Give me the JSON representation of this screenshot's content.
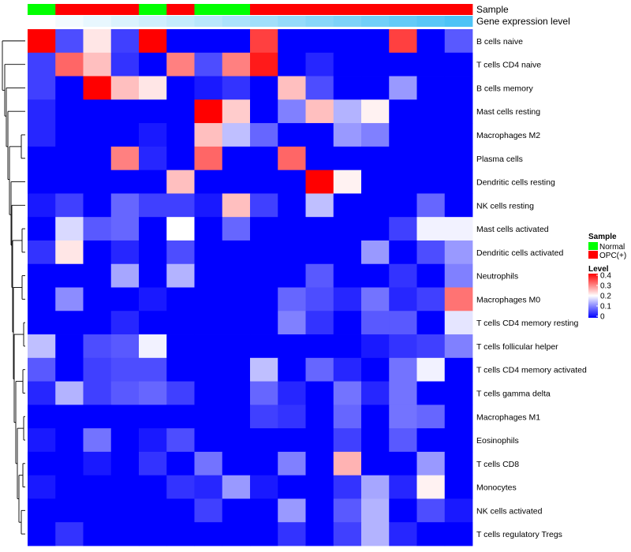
{
  "chart_data": {
    "type": "heatmap",
    "title": "",
    "xlabel": "",
    "ylabel": "",
    "annotations": [
      {
        "name": "Sample",
        "values": [
          "Normal",
          "OPC(+)",
          "OPC(+)",
          "OPC(+)",
          "Normal",
          "OPC(+)",
          "Normal",
          "Normal",
          "OPC(+)",
          "OPC(+)",
          "OPC(+)",
          "OPC(+)",
          "OPC(+)",
          "OPC(+)",
          "OPC(+)",
          "OPC(+)"
        ]
      },
      {
        "name": "Gene expression level",
        "values": [
          0.0,
          0.07,
          0.13,
          0.2,
          0.27,
          0.33,
          0.4,
          0.47,
          0.53,
          0.6,
          0.67,
          0.73,
          0.8,
          0.87,
          0.93,
          1.0
        ]
      }
    ],
    "rows": [
      "B cells naive",
      "T cells CD4 naive",
      "B cells memory",
      "Mast cells resting",
      "Macrophages M2",
      "Plasma cells",
      "Dendritic cells resting",
      "NK cells resting",
      "Mast cells activated",
      "Dendritic cells activated",
      "Neutrophils",
      "Macrophages M0",
      "T cells CD4 memory resting",
      "T cells follicular helper",
      "T cells CD4 memory activated",
      "T cells gamma delta",
      "Macrophages M1",
      "Eosinophils",
      "T cells CD8",
      "Monocytes",
      "NK cells activated",
      "T cells regulatory  Tregs"
    ],
    "values": [
      [
        0.4,
        0.06,
        0.22,
        0.05,
        0.4,
        0,
        0,
        0,
        0.35,
        0,
        0,
        0,
        0,
        0.35,
        0,
        0.07
      ],
      [
        0.05,
        0.32,
        0.25,
        0.04,
        0,
        0.3,
        0.06,
        0.3,
        0.38,
        0,
        0.03,
        0,
        0,
        0,
        0,
        0
      ],
      [
        0.05,
        0,
        0.4,
        0.25,
        0.22,
        0,
        0.02,
        0.04,
        0,
        0.25,
        0.06,
        0,
        0,
        0.12,
        0,
        0
      ],
      [
        0.03,
        0,
        0,
        0,
        0,
        0,
        0.4,
        0.24,
        0,
        0.1,
        0.25,
        0.14,
        0.21,
        0,
        0,
        0
      ],
      [
        0.03,
        0,
        0,
        0,
        0.02,
        0,
        0.25,
        0.15,
        0.08,
        0,
        0,
        0.12,
        0.1,
        0,
        0,
        0
      ],
      [
        0,
        0,
        0,
        0.3,
        0.03,
        0,
        0.32,
        0,
        0,
        0.32,
        0,
        0,
        0,
        0,
        0,
        0
      ],
      [
        0,
        0,
        0,
        0,
        0,
        0.25,
        0,
        0,
        0,
        0,
        0.4,
        0.21,
        0,
        0,
        0,
        0
      ],
      [
        0.02,
        0.05,
        0,
        0.08,
        0.05,
        0.05,
        0.02,
        0.25,
        0.05,
        0,
        0.15,
        0,
        0,
        0,
        0.08,
        0
      ],
      [
        0,
        0.17,
        0.07,
        0.08,
        0,
        0.2,
        0,
        0.08,
        0,
        0,
        0,
        0,
        0,
        0.05,
        0.19,
        0.19
      ],
      [
        0.04,
        0.22,
        0,
        0.03,
        0,
        0.06,
        0,
        0,
        0,
        0,
        0,
        0,
        0.12,
        0,
        0.06,
        0.12
      ],
      [
        0,
        0,
        0,
        0.13,
        0,
        0.14,
        0,
        0,
        0,
        0,
        0.07,
        0,
        0,
        0.04,
        0,
        0.1
      ],
      [
        0,
        0.11,
        0,
        0,
        0.02,
        0,
        0,
        0,
        0,
        0.08,
        0.06,
        0.03,
        0.09,
        0.03,
        0.05,
        0.31
      ],
      [
        0,
        0,
        0,
        0.03,
        0,
        0,
        0,
        0,
        0,
        0.1,
        0.04,
        0,
        0.07,
        0.07,
        0,
        0.18
      ],
      [
        0.15,
        0,
        0.06,
        0.07,
        0.19,
        0,
        0,
        0,
        0,
        0,
        0,
        0,
        0.02,
        0.04,
        0.05,
        0.1
      ],
      [
        0.07,
        0,
        0.05,
        0.06,
        0.06,
        0,
        0,
        0,
        0.15,
        0,
        0.08,
        0.03,
        0,
        0.09,
        0.19,
        0
      ],
      [
        0.03,
        0.14,
        0.05,
        0.07,
        0.08,
        0.05,
        0,
        0,
        0.08,
        0.03,
        0,
        0.09,
        0.03,
        0.09,
        0,
        0
      ],
      [
        0,
        0,
        0,
        0,
        0,
        0,
        0,
        0,
        0.05,
        0.04,
        0,
        0.08,
        0,
        0.09,
        0.08,
        0
      ],
      [
        0.02,
        0,
        0.09,
        0,
        0.02,
        0.06,
        0,
        0,
        0,
        0,
        0,
        0.05,
        0,
        0.07,
        0,
        0
      ],
      [
        0,
        0,
        0.02,
        0,
        0.04,
        0,
        0.09,
        0,
        0,
        0.1,
        0,
        0.26,
        0,
        0,
        0.12,
        0
      ],
      [
        0.02,
        0,
        0,
        0,
        0,
        0.04,
        0.03,
        0.12,
        0.02,
        0,
        0,
        0.04,
        0.13,
        0.03,
        0.21,
        0
      ],
      [
        0,
        0,
        0,
        0,
        0,
        0,
        0.05,
        0,
        0,
        0.12,
        0,
        0.07,
        0.14,
        0,
        0.06,
        0.02
      ],
      [
        0,
        0.04,
        0,
        0,
        0,
        0,
        0,
        0,
        0,
        0.04,
        0,
        0.05,
        0.14,
        0.03,
        0,
        0
      ]
    ],
    "color_scale": {
      "min": 0,
      "max": 0.4,
      "low": "#0000FF",
      "mid": "#FFFFFF",
      "high": "#FF0000"
    },
    "legends": [
      {
        "title": "Sample",
        "entries": [
          {
            "label": "Normal",
            "color": "#00FF00"
          },
          {
            "label": "OPC(+)",
            "color": "#FF0000"
          }
        ]
      },
      {
        "title": "Level",
        "ticks": [
          "0.4",
          "0.3",
          "0.2",
          "0.1",
          "0"
        ]
      }
    ],
    "annotation_colors": {
      "Normal": "#00FF00",
      "OPC(+)": "#FF0000",
      "expr_low": "#FFFFFF",
      "expr_high": "#4DC3F6"
    },
    "dendrogram": "rows"
  }
}
